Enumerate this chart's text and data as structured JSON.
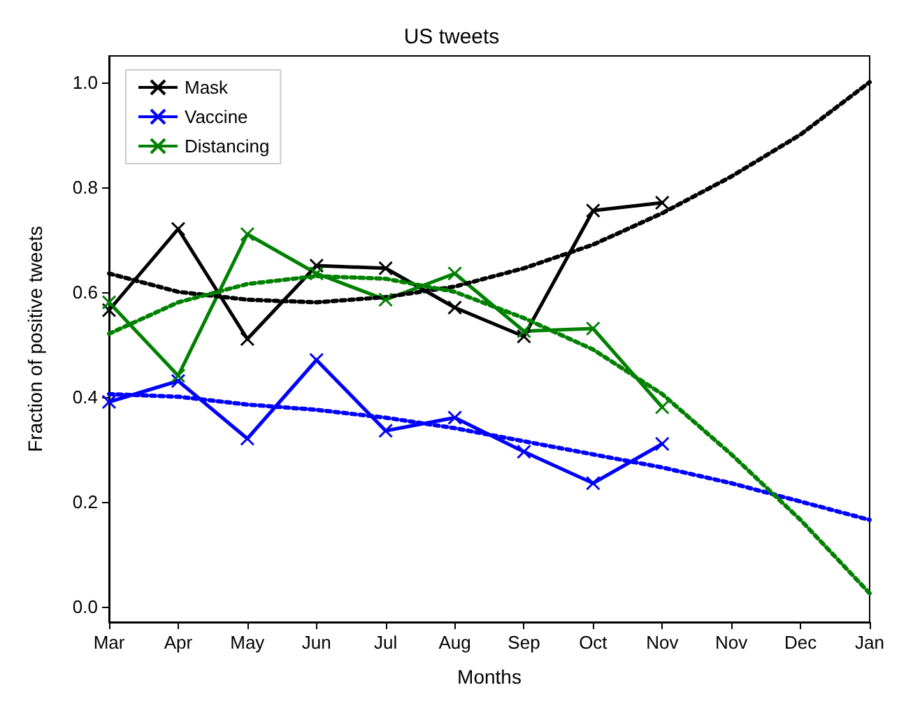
{
  "chart_data": {
    "type": "line",
    "title": "US tweets",
    "xlabel": "Months",
    "ylabel": "Fraction of positive tweets",
    "categories": [
      "Mar",
      "Apr",
      "May",
      "Jun",
      "Jul",
      "Aug",
      "Sep",
      "Oct",
      "Nov",
      "Nov",
      "Dec",
      "Jan"
    ],
    "series": [
      {
        "name": "Mask",
        "color": "#000000",
        "marker": "cross",
        "line_style": "solid",
        "values": [
          0.565,
          0.72,
          0.51,
          0.65,
          0.645,
          0.57,
          0.515,
          0.755,
          0.77,
          null,
          null,
          null
        ]
      },
      {
        "name": "Vaccine",
        "color": "#0000ff",
        "marker": "cross",
        "line_style": "solid",
        "values": [
          0.39,
          0.43,
          0.32,
          0.47,
          0.335,
          0.36,
          0.295,
          0.235,
          0.31,
          null,
          null,
          null
        ]
      },
      {
        "name": "Distancing",
        "color": "#008000",
        "marker": "cross",
        "line_style": "solid",
        "values": [
          0.58,
          0.44,
          0.71,
          0.635,
          0.585,
          0.635,
          0.525,
          0.53,
          0.38,
          null,
          null,
          null
        ]
      },
      {
        "color": "#000000",
        "marker": "none",
        "line_style": "dotted",
        "values": [
          0.635,
          0.6,
          0.585,
          0.58,
          0.59,
          0.61,
          0.645,
          0.69,
          0.75,
          0.82,
          0.9,
          1.0
        ]
      },
      {
        "color": "#0000ff",
        "marker": "none",
        "line_style": "dotted",
        "values": [
          0.405,
          0.4,
          0.385,
          0.375,
          0.36,
          0.34,
          0.315,
          0.29,
          0.265,
          0.235,
          0.2,
          0.165
        ]
      },
      {
        "color": "#008000",
        "marker": "none",
        "line_style": "dotted",
        "values": [
          0.52,
          0.58,
          0.615,
          0.63,
          0.625,
          0.6,
          0.55,
          0.49,
          0.405,
          0.29,
          0.165,
          0.025
        ]
      }
    ],
    "ylim": [
      -0.03,
      1.05
    ],
    "yticks": [
      {
        "value": 0,
        "label": "0.0"
      },
      0.2,
      0.4,
      0.6,
      0.8,
      {
        "value": 1,
        "label": "1.0"
      }
    ],
    "grid": false,
    "legend": "top left"
  }
}
